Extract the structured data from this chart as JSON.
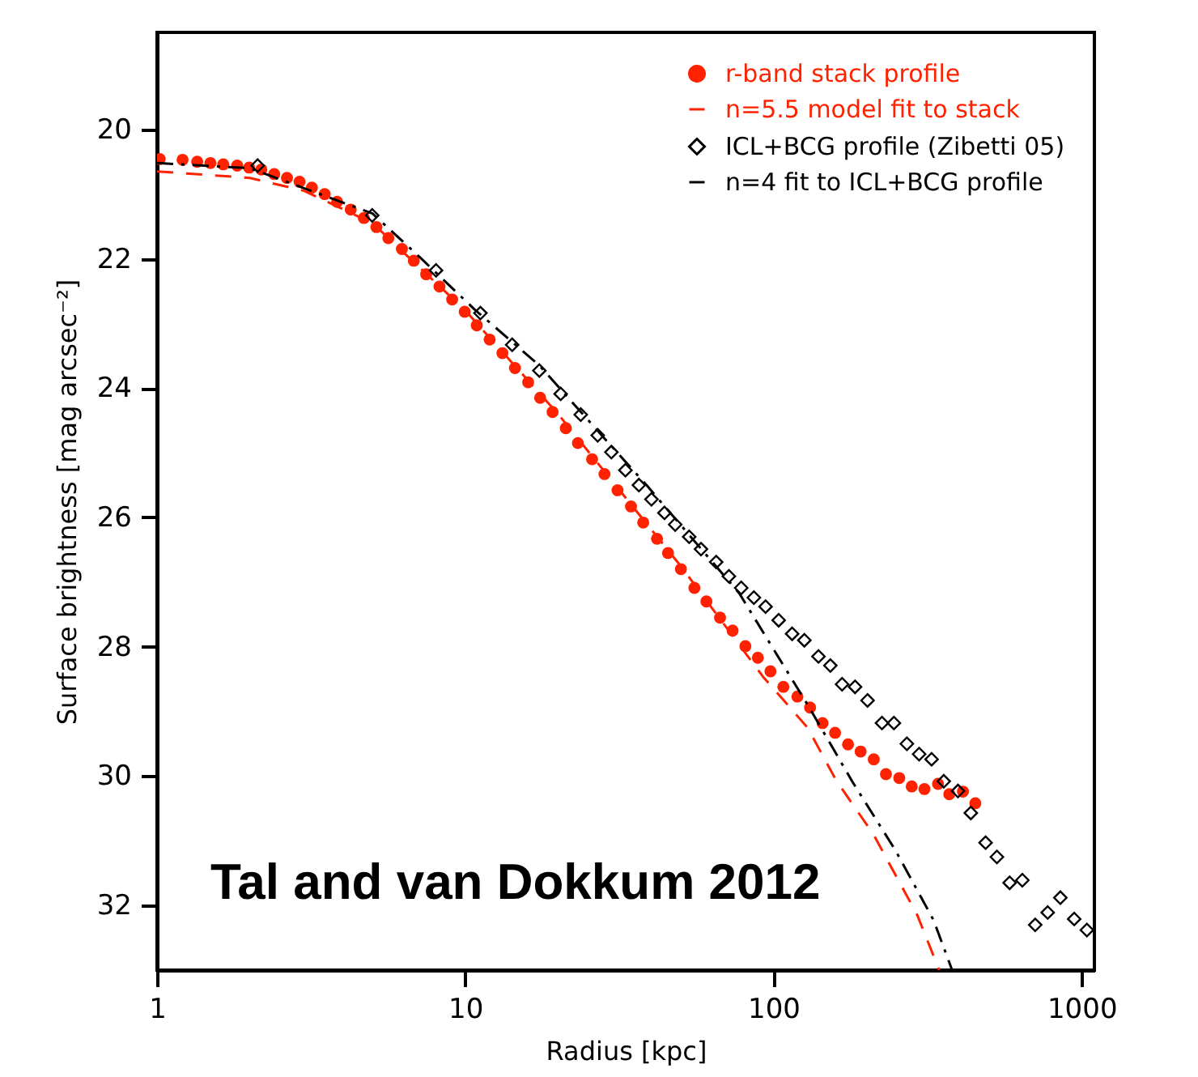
{
  "chart_data": {
    "type": "scatter",
    "xlabel": "Radius [kpc]",
    "ylabel": "Surface brightness [mag arcsec⁻²]",
    "log": "x",
    "xlim": [
      1,
      1100
    ],
    "xticks": [
      1,
      10,
      100,
      1000
    ],
    "ylim": [
      33,
      18.5
    ],
    "yticks": [
      20,
      22,
      24,
      26,
      28,
      30,
      32
    ],
    "grid": false,
    "legend": "top right",
    "annotations": [
      "Tal and van Dokkum 2012"
    ],
    "series": [
      {
        "name": "r-band stack profile",
        "type": "scatter",
        "marker": "circle",
        "color": "#ff2200",
        "x": [
          1.02,
          1.21,
          1.35,
          1.49,
          1.64,
          1.82,
          1.99,
          2.18,
          2.4,
          2.64,
          2.9,
          3.18,
          3.5,
          3.84,
          4.25,
          4.69,
          5.15,
          5.63,
          6.23,
          6.81,
          7.47,
          8.25,
          9.07,
          9.96,
          10.9,
          12.0,
          13.2,
          14.5,
          16.0,
          17.5,
          19.2,
          21.2,
          23.2,
          25.8,
          28.3,
          31.2,
          34.5,
          37.8,
          41.9,
          45.5,
          50.1,
          55.4,
          60.6,
          67.1,
          73.7,
          81.1,
          89.0,
          97.8,
          107.7,
          119.6,
          131.5,
          144.3,
          158.5,
          174.6,
          191.8,
          211.6,
          231.8,
          256,
          281,
          309,
          342,
          372,
          412,
          452
        ],
        "values": [
          20.46,
          20.47,
          20.5,
          20.52,
          20.54,
          20.56,
          20.59,
          20.62,
          20.69,
          20.75,
          20.81,
          20.9,
          21.0,
          21.12,
          21.24,
          21.37,
          21.51,
          21.68,
          21.85,
          22.03,
          22.24,
          22.43,
          22.63,
          22.82,
          23.03,
          23.25,
          23.46,
          23.69,
          23.91,
          24.15,
          24.37,
          24.62,
          24.85,
          25.1,
          25.33,
          25.58,
          25.83,
          26.08,
          26.33,
          26.55,
          26.8,
          27.09,
          27.3,
          27.55,
          27.75,
          27.99,
          28.17,
          28.38,
          28.62,
          28.77,
          28.94,
          29.18,
          29.33,
          29.51,
          29.62,
          29.74,
          29.97,
          30.03,
          30.16,
          30.2,
          30.12,
          30.28,
          30.24,
          30.42
        ]
      },
      {
        "name": "n=5.5 model fit to stack",
        "type": "line",
        "line_style": "dashed",
        "color": "#ff2200",
        "x": [
          1,
          2,
          3,
          5,
          10,
          20,
          50,
          92.4,
          129,
          160,
          211,
          293,
          345
        ],
        "values": [
          20.65,
          20.75,
          20.95,
          21.45,
          22.8,
          24.4,
          26.75,
          28.46,
          29.25,
          30.07,
          30.9,
          32.15,
          33
        ]
      },
      {
        "name": "ICL+BCG profile (Zibetti 05)",
        "type": "scatter",
        "marker": "diamond",
        "color": "#000000",
        "x": [
          2.12,
          4.99,
          8.04,
          11.2,
          14.2,
          17.4,
          20.4,
          23.7,
          26.9,
          29.8,
          33.1,
          36.6,
          40.2,
          44.3,
          48.0,
          53.3,
          58.2,
          65.2,
          71.7,
          78.6,
          86.4,
          94.3,
          104,
          115,
          126,
          140,
          153,
          167,
          184,
          202,
          225,
          246,
          271,
          297,
          326,
          357,
          397,
          437,
          488,
          531,
          584,
          642,
          707,
          776,
          853,
          946,
          1040
        ],
        "values": [
          20.56,
          21.33,
          22.18,
          22.84,
          23.33,
          23.73,
          24.09,
          24.41,
          24.73,
          24.99,
          25.27,
          25.5,
          25.72,
          25.93,
          26.11,
          26.3,
          26.49,
          26.69,
          26.91,
          27.09,
          27.24,
          27.38,
          27.59,
          27.8,
          27.9,
          28.15,
          28.29,
          28.58,
          28.62,
          28.83,
          29.18,
          29.18,
          29.5,
          29.66,
          29.74,
          30.08,
          30.23,
          30.57,
          31.03,
          31.25,
          31.65,
          31.61,
          32.3,
          32.11,
          31.88,
          32.21,
          32.38
        ]
      },
      {
        "name": "n=4 fit to ICL+BCG profile",
        "type": "line",
        "line_style": "dashdot",
        "color": "#000000",
        "x": [
          1,
          2,
          5,
          7.17,
          10.7,
          17.4,
          28.2,
          38.9,
          63.1,
          77.4,
          94.4,
          130,
          180,
          249,
          331,
          380
        ],
        "values": [
          20.52,
          20.6,
          21.3,
          21.99,
          22.78,
          23.65,
          24.77,
          25.51,
          26.68,
          27.17,
          27.84,
          28.92,
          30.08,
          31.15,
          32.23,
          33
        ]
      }
    ]
  }
}
